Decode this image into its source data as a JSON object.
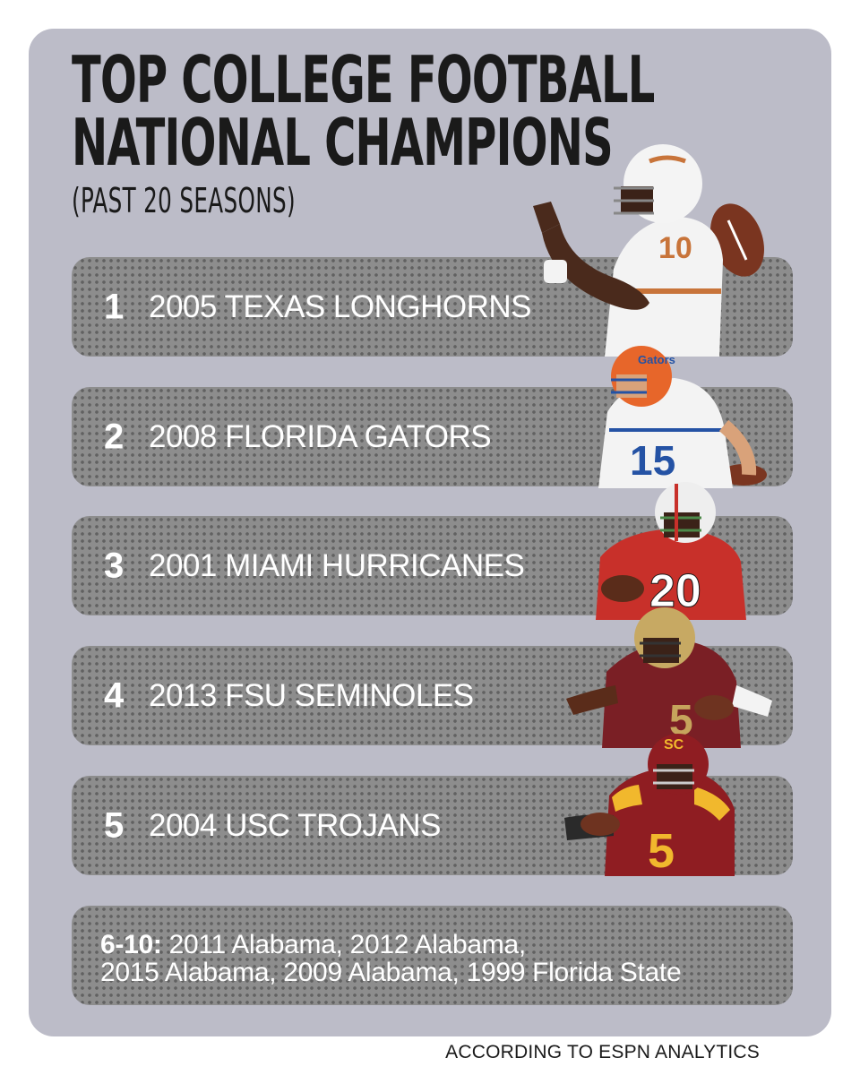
{
  "title": {
    "line1": "TOP COLLEGE FOOTBALL",
    "line2": "NATIONAL CHAMPIONS",
    "subtitle": "(PAST 20 SEASONS)"
  },
  "rankings": [
    {
      "rank": "1",
      "team": "2005 TEXAS LONGHORNS",
      "jersey": "10",
      "colors": {
        "jersey": "#f3f3f3",
        "trim": "#c8743a",
        "helmet": "#f4f4f4"
      }
    },
    {
      "rank": "2",
      "team": "2008 FLORIDA GATORS",
      "jersey": "15",
      "colors": {
        "jersey": "#f3f3f3",
        "trim": "#2452a4",
        "helmet": "#e7662a"
      }
    },
    {
      "rank": "3",
      "team": "2001 MIAMI HURRICANES",
      "jersey": "20",
      "colors": {
        "jersey": "#c8302a",
        "trim": "#ffffff",
        "helmet": "#eeeeee"
      }
    },
    {
      "rank": "4",
      "team": "2013 FSU SEMINOLES",
      "jersey": "5",
      "colors": {
        "jersey": "#7a1f25",
        "trim": "#c6a45c",
        "helmet": "#c7a963"
      }
    },
    {
      "rank": "5",
      "team": "2004 USC TROJANS",
      "jersey": "5",
      "colors": {
        "jersey": "#8f1d22",
        "trim": "#f1b82d",
        "helmet": "#8f1d22"
      }
    }
  ],
  "others": {
    "label": "6-10:",
    "line1": "2011 Alabama, 2012 Alabama,",
    "line2": "2015 Alabama, 2009 Alabama, 1999 Florida State"
  },
  "footer": "ACCORDING TO ESPN ANALYTICS",
  "colors": {
    "background": "#bcbcc8",
    "row": "#8d8d8d",
    "row_text": "#ffffff",
    "title_text": "#1a1a1a"
  }
}
